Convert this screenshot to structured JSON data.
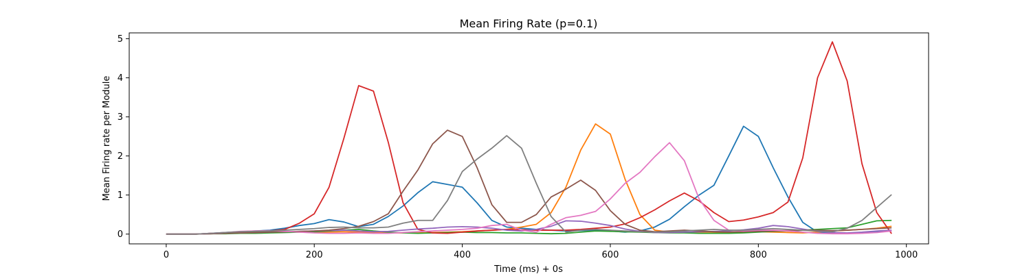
{
  "chart_data": {
    "type": "line",
    "title": "Mean Firing Rate (p=0.1)",
    "xlabel": "Time (ms) + 0s",
    "ylabel": "Mean Firing rate per Module",
    "xlim": [
      -50,
      1030
    ],
    "ylim": [
      -0.25,
      5.15
    ],
    "xticks": [
      0,
      200,
      400,
      600,
      800,
      1000
    ],
    "yticks": [
      0,
      1,
      2,
      3,
      4,
      5
    ],
    "grid": false,
    "x": [
      0,
      20,
      40,
      60,
      80,
      100,
      120,
      140,
      160,
      180,
      200,
      220,
      240,
      260,
      280,
      300,
      320,
      340,
      360,
      380,
      400,
      420,
      440,
      460,
      480,
      500,
      520,
      540,
      560,
      580,
      600,
      620,
      640,
      660,
      680,
      700,
      720,
      740,
      760,
      780,
      800,
      820,
      840,
      860,
      880,
      900,
      920,
      940,
      960,
      980
    ],
    "series": [
      {
        "color": "#1f77b4",
        "values": [
          0,
          0,
          0,
          0.02,
          0.04,
          0.06,
          0.08,
          0.1,
          0.15,
          0.22,
          0.27,
          0.37,
          0.31,
          0.19,
          0.25,
          0.45,
          0.72,
          1.06,
          1.34,
          1.27,
          1.2,
          0.8,
          0.35,
          0.18,
          0.15,
          0.12,
          0.1,
          0.08,
          0.09,
          0.1,
          0.08,
          0.05,
          0.08,
          0.18,
          0.38,
          0.7,
          1.0,
          1.25,
          2.0,
          2.76,
          2.5,
          1.7,
          0.95,
          0.3,
          0.05,
          0.03,
          0.02,
          0.04,
          0.06,
          0.08
        ]
      },
      {
        "color": "#ff7f0e",
        "values": [
          0,
          0,
          0,
          0.01,
          0.02,
          0.03,
          0.04,
          0.05,
          0.06,
          0.05,
          0.04,
          0.05,
          0.06,
          0.05,
          0.04,
          0.03,
          0.03,
          0.03,
          0.04,
          0.05,
          0.06,
          0.08,
          0.1,
          0.12,
          0.18,
          0.25,
          0.55,
          1.2,
          2.15,
          2.82,
          2.56,
          1.4,
          0.5,
          0.1,
          0.05,
          0.04,
          0.03,
          0.03,
          0.04,
          0.05,
          0.06,
          0.05,
          0.04,
          0.03,
          0.05,
          0.08,
          0.1,
          0.12,
          0.15,
          0.2
        ]
      },
      {
        "color": "#2ca02c",
        "values": [
          0,
          0,
          0,
          0.01,
          0.01,
          0.02,
          0.02,
          0.03,
          0.04,
          0.05,
          0.06,
          0.08,
          0.1,
          0.12,
          0.08,
          0.05,
          0.03,
          0.02,
          0.03,
          0.04,
          0.05,
          0.04,
          0.04,
          0.03,
          0.03,
          0.02,
          0.01,
          0.02,
          0.05,
          0.08,
          0.07,
          0.06,
          0.05,
          0.04,
          0.03,
          0.03,
          0.02,
          0.02,
          0.02,
          0.03,
          0.05,
          0.07,
          0.08,
          0.1,
          0.12,
          0.14,
          0.16,
          0.25,
          0.34,
          0.35
        ]
      },
      {
        "color": "#d62728",
        "values": [
          0,
          0,
          0,
          0.02,
          0.03,
          0.04,
          0.05,
          0.08,
          0.12,
          0.28,
          0.52,
          1.2,
          2.45,
          3.8,
          3.66,
          2.35,
          0.8,
          0.12,
          0.03,
          0.02,
          0.05,
          0.08,
          0.1,
          0.12,
          0.11,
          0.1,
          0.1,
          0.1,
          0.12,
          0.15,
          0.18,
          0.26,
          0.42,
          0.62,
          0.85,
          1.05,
          0.85,
          0.55,
          0.32,
          0.36,
          0.44,
          0.55,
          0.82,
          1.95,
          4.0,
          4.92,
          3.92,
          1.8,
          0.55,
          0.01
        ]
      },
      {
        "color": "#9467bd",
        "values": [
          0,
          0,
          0,
          0.01,
          0.02,
          0.03,
          0.04,
          0.05,
          0.06,
          0.07,
          0.08,
          0.09,
          0.1,
          0.08,
          0.06,
          0.07,
          0.1,
          0.13,
          0.15,
          0.18,
          0.19,
          0.18,
          0.15,
          0.1,
          0.08,
          0.12,
          0.2,
          0.34,
          0.33,
          0.28,
          0.22,
          0.13,
          0.07,
          0.04,
          0.04,
          0.05,
          0.06,
          0.07,
          0.08,
          0.11,
          0.15,
          0.22,
          0.19,
          0.13,
          0.07,
          0.04,
          0.03,
          0.05,
          0.08,
          0.1
        ]
      },
      {
        "color": "#8c564b",
        "values": [
          0,
          0,
          0,
          0.01,
          0.02,
          0.03,
          0.04,
          0.05,
          0.06,
          0.07,
          0.08,
          0.1,
          0.14,
          0.2,
          0.32,
          0.52,
          1.1,
          1.64,
          2.31,
          2.66,
          2.5,
          1.7,
          0.75,
          0.3,
          0.3,
          0.5,
          0.95,
          1.15,
          1.38,
          1.12,
          0.6,
          0.25,
          0.1,
          0.06,
          0.08,
          0.1,
          0.08,
          0.06,
          0.05,
          0.06,
          0.07,
          0.08,
          0.09,
          0.1,
          0.1,
          0.09,
          0.1,
          0.12,
          0.14,
          0.16
        ]
      },
      {
        "color": "#e377c2",
        "values": [
          0,
          0,
          0,
          0.02,
          0.04,
          0.07,
          0.08,
          0.09,
          0.07,
          0.05,
          0.03,
          0.02,
          0.02,
          0.03,
          0.02,
          0.02,
          0.04,
          0.06,
          0.08,
          0.1,
          0.12,
          0.15,
          0.22,
          0.25,
          0.1,
          0.05,
          0.25,
          0.42,
          0.48,
          0.58,
          0.9,
          1.3,
          1.58,
          1.98,
          2.34,
          1.88,
          0.9,
          0.35,
          0.1,
          0.08,
          0.1,
          0.1,
          0.08,
          0.05,
          0.02,
          0.01,
          0.01,
          0.02,
          0.04,
          0.08
        ]
      },
      {
        "color": "#7f7f7f",
        "values": [
          0,
          0,
          0,
          0.02,
          0.04,
          0.06,
          0.07,
          0.08,
          0.1,
          0.12,
          0.14,
          0.17,
          0.18,
          0.16,
          0.16,
          0.18,
          0.28,
          0.35,
          0.35,
          0.86,
          1.6,
          1.92,
          2.2,
          2.52,
          2.2,
          1.3,
          0.45,
          0.05,
          0.1,
          0.12,
          0.1,
          0.08,
          0.06,
          0.05,
          0.06,
          0.08,
          0.1,
          0.12,
          0.1,
          0.1,
          0.12,
          0.14,
          0.12,
          0.1,
          0.08,
          0.06,
          0.15,
          0.35,
          0.68,
          1.01
        ]
      }
    ]
  }
}
